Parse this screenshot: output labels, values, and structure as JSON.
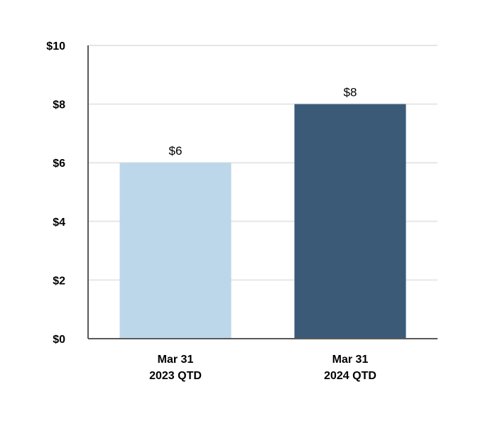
{
  "chart_data": {
    "type": "bar",
    "categories": [
      [
        "Mar 31",
        "2023 QTD"
      ],
      [
        "Mar 31",
        "2024 QTD"
      ]
    ],
    "values": [
      6,
      8
    ],
    "data_labels": [
      "$6",
      "$8"
    ],
    "bar_colors": [
      "#bdd7ea",
      "#3b5a78"
    ],
    "ylim": [
      0,
      10
    ],
    "yticks": [
      0,
      2,
      4,
      6,
      8,
      10
    ],
    "ytick_labels": [
      "$0",
      "$2",
      "$4",
      "$6",
      "$8",
      "$10"
    ],
    "grid": true,
    "grid_color": "#e6e6e6",
    "axis_color": "#595959",
    "legend": "none"
  }
}
